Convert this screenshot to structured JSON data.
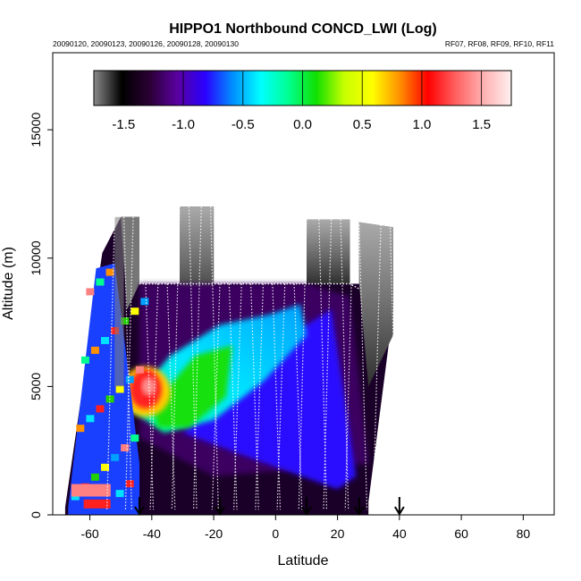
{
  "chart_data": {
    "type": "heatmap",
    "title": "HIPPO1 Northbound CONCD_LWI (Log)",
    "subtitle_left": "20090120, 20090123, 20090126, 20090128, 20090130",
    "subtitle_right": "RF07, RF08, RF09, RF10, RF11",
    "xlabel": "Latitude",
    "ylabel": "Altitude (m)",
    "xlim": [
      -72,
      90
    ],
    "ylim": [
      0,
      18000
    ],
    "xticks": [
      -60,
      -40,
      -20,
      0,
      20,
      40,
      60,
      80
    ],
    "yticks": [
      0,
      5000,
      10000,
      15000
    ],
    "colorbar": {
      "range": [
        -1.75,
        1.75
      ],
      "ticks": [
        -1.5,
        -1.0,
        -0.5,
        0.0,
        0.5,
        1.0,
        1.5
      ],
      "tick_labels": [
        "-1.5",
        "-1.0",
        "-0.5",
        "0.0",
        "0.5",
        "1.0",
        "1.5"
      ],
      "colors": [
        "#8a8a8a",
        "#000000",
        "#2a0033",
        "#5a00a0",
        "#2a00ff",
        "#0090ff",
        "#00ffff",
        "#00ff90",
        "#10e000",
        "#c8ff00",
        "#ffff00",
        "#ff9000",
        "#ff0000",
        "#ff6060",
        "#ffb0b0",
        "#fff0f0"
      ]
    },
    "flight_markers_latitude": [
      -44,
      -18,
      10,
      27,
      40
    ],
    "regions": [
      {
        "name": "upper-troposphere-high",
        "lat_range": [
          -31,
          38
        ],
        "alt_range": [
          9000,
          12000
        ],
        "color": "#888888"
      },
      {
        "name": "mid-level-dark",
        "lat_range": [
          -44,
          30
        ],
        "alt_range": [
          1500,
          9000
        ],
        "color": "#1a0028"
      },
      {
        "name": "cyan-plume",
        "lat_range": [
          -48,
          8
        ],
        "alt_range": [
          2500,
          8500
        ],
        "color": "#00d8ff"
      },
      {
        "name": "blue-plume",
        "lat_range": [
          -30,
          28
        ],
        "alt_range": [
          1000,
          7000
        ],
        "color": "#2a00ff"
      },
      {
        "name": "green-core",
        "lat_range": [
          -38,
          -10
        ],
        "alt_range": [
          3000,
          7000
        ],
        "color": "#10e000"
      },
      {
        "name": "red-core",
        "lat_range": [
          -50,
          -36
        ],
        "alt_range": [
          3500,
          6500
        ],
        "color": "#ff2020"
      },
      {
        "name": "southern-slope-mixed",
        "lat_range": [
          -68,
          -40
        ],
        "alt_range": [
          0,
          11000
        ],
        "color": "#00c8ff"
      }
    ]
  }
}
